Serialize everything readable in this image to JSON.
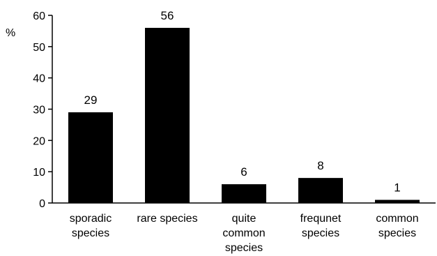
{
  "chart_data": {
    "type": "bar",
    "ylabel": "%",
    "categories": [
      [
        "sporadic",
        "species"
      ],
      [
        "rare species"
      ],
      [
        "quite",
        "common",
        "species"
      ],
      [
        "frequnet",
        "species"
      ],
      [
        "common",
        "species"
      ]
    ],
    "values": [
      29,
      56,
      6,
      8,
      1
    ],
    "data_labels": [
      "29",
      "56",
      "6",
      "8",
      "1"
    ],
    "ylim": [
      0,
      60
    ],
    "yticks": [
      0,
      10,
      20,
      30,
      40,
      50,
      60
    ],
    "grid": false,
    "bar_color": "#000000"
  }
}
